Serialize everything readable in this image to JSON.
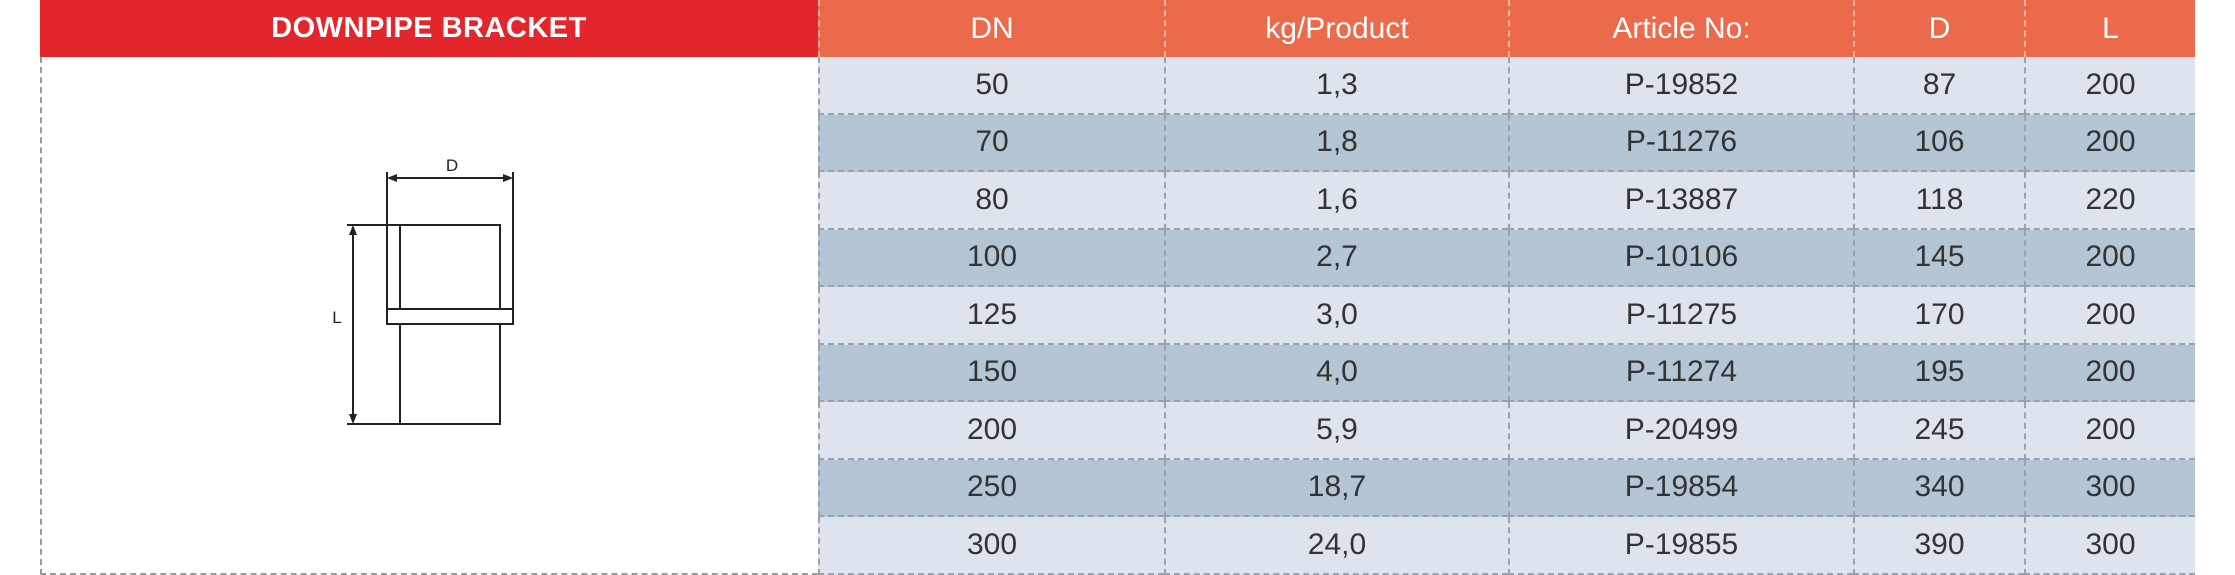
{
  "header": {
    "title": "DOWNPIPE BRACKET"
  },
  "diagram": {
    "labels": [
      "D",
      "L"
    ]
  },
  "table": {
    "columns": [
      "DN",
      "kg/Product",
      "Article No:",
      "D",
      "L"
    ],
    "rows": [
      [
        "50",
        "1,3",
        "P-19852",
        "87",
        "200"
      ],
      [
        "70",
        "1,8",
        "P-11276",
        "106",
        "200"
      ],
      [
        "80",
        "1,6",
        "P-13887",
        "118",
        "220"
      ],
      [
        "100",
        "2,7",
        "P-10106",
        "145",
        "200"
      ],
      [
        "125",
        "3,0",
        "P-11275",
        "170",
        "200"
      ],
      [
        "150",
        "4,0",
        "P-11274",
        "195",
        "200"
      ],
      [
        "200",
        "5,9",
        "P-20499",
        "245",
        "200"
      ],
      [
        "250",
        "18,7",
        "P-19854",
        "340",
        "300"
      ],
      [
        "300",
        "24,0",
        "P-19855",
        "390",
        "300"
      ]
    ]
  }
}
